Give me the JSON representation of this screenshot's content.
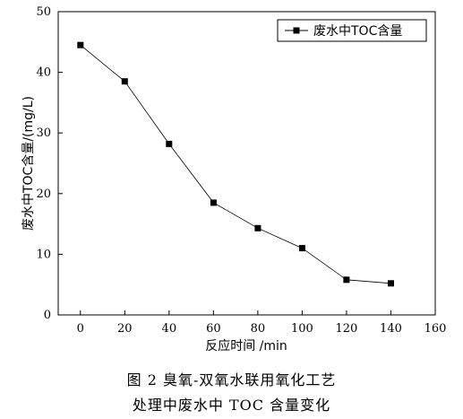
{
  "chart_data": {
    "type": "line",
    "x": [
      0,
      20,
      40,
      60,
      80,
      100,
      120,
      140
    ],
    "series": [
      {
        "name": "废水中TOC含量",
        "values": [
          44.5,
          38.5,
          28.2,
          18.5,
          14.3,
          11.0,
          5.8,
          5.2
        ],
        "marker": "square",
        "color": "#000000"
      }
    ],
    "xlabel": "反应时间 /min",
    "ylabel": "废水中TOC含量/(mg/L)",
    "xlim": [
      -10,
      160
    ],
    "ylim": [
      0,
      50
    ],
    "xticks": [
      "0",
      "20",
      "40",
      "60",
      "80",
      "100",
      "120",
      "140",
      "160"
    ],
    "yticks": [
      "0",
      "10",
      "20",
      "30",
      "40",
      "50"
    ],
    "legend_position": "top-right",
    "grid": false
  },
  "caption": {
    "line1": "图 2  臭氧-双氧水联用氧化工艺",
    "line2": "处理中废水中 TOC 含量变化"
  }
}
